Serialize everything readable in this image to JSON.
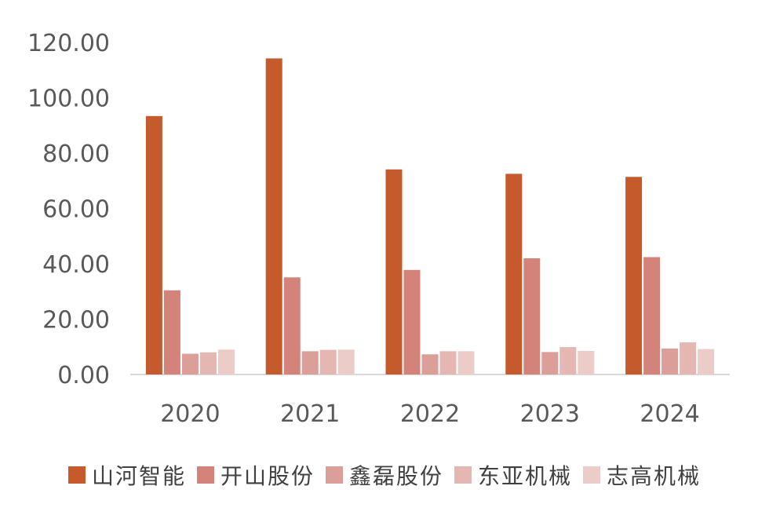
{
  "chart_data": {
    "type": "bar",
    "categories": [
      "2020",
      "2021",
      "2022",
      "2023",
      "2024"
    ],
    "series": [
      {
        "name": "山河智能",
        "values": [
          93.4,
          114.2,
          74.1,
          72.5,
          71.4
        ],
        "color": "#C55A2D"
      },
      {
        "name": "开山股份",
        "values": [
          30.4,
          35.1,
          37.8,
          42.0,
          42.4
        ],
        "color": "#D4837A"
      },
      {
        "name": "鑫磊股份",
        "values": [
          7.5,
          8.4,
          7.3,
          8.1,
          9.4
        ],
        "color": "#DB9E98"
      },
      {
        "name": "东亚机械",
        "values": [
          8.0,
          8.9,
          8.4,
          9.9,
          11.6
        ],
        "color": "#E4B7B2"
      },
      {
        "name": "志高机械",
        "values": [
          9.0,
          9.0,
          8.4,
          8.5,
          9.2
        ],
        "color": "#ECCCC8"
      }
    ],
    "yticks": [
      "0.00",
      "20.00",
      "40.00",
      "60.00",
      "80.00",
      "100.00",
      "120.00"
    ],
    "ylim": [
      0,
      120
    ],
    "grid": false,
    "legend_position": "bottom",
    "title": "",
    "xlabel": "",
    "ylabel": ""
  }
}
